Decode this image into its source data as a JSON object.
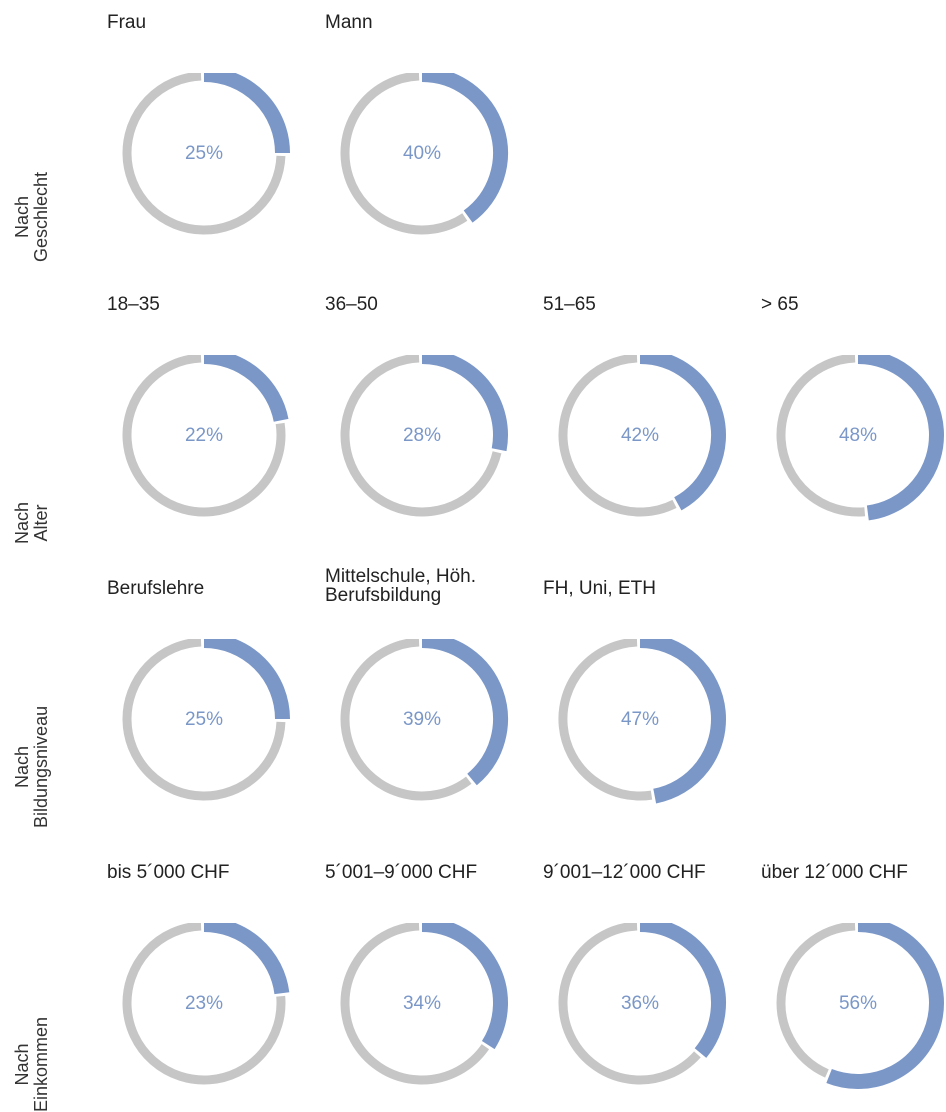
{
  "colors": {
    "accent": "#7a97c8",
    "track": "#c6c6c6"
  },
  "chart_data": {
    "type": "donut",
    "groups": [
      {
        "label": "Nach\nGeschlecht",
        "label_lines": [
          "Nach",
          "Geschlecht"
        ],
        "items": [
          {
            "name": "Frau",
            "value": 25,
            "text": "25%"
          },
          {
            "name": "Mann",
            "value": 40,
            "text": "40%"
          }
        ]
      },
      {
        "label": "Nach\nAlter",
        "label_lines": [
          "Nach",
          "Alter"
        ],
        "items": [
          {
            "name": "18–35",
            "value": 22,
            "text": "22%"
          },
          {
            "name": "36–50",
            "value": 28,
            "text": "28%"
          },
          {
            "name": "51–65",
            "value": 42,
            "text": "42%"
          },
          {
            "name": "> 65",
            "value": 48,
            "text": "48%"
          }
        ]
      },
      {
        "label": "Nach\nBildungsniveau",
        "label_lines": [
          "Nach",
          "Bildungsniveau"
        ],
        "items": [
          {
            "name": "Berufslehre",
            "value": 25,
            "text": "25%"
          },
          {
            "name": "Mittelschule, Höh.\nBerufsbildung",
            "name_lines": [
              "Mittelschule, Höh.",
              "Berufsbildung"
            ],
            "value": 39,
            "text": "39%"
          },
          {
            "name": "FH, Uni, ETH",
            "value": 47,
            "text": "47%"
          }
        ]
      },
      {
        "label": "Nach\nEinkommen",
        "label_lines": [
          "Nach",
          "Einkommen"
        ],
        "items": [
          {
            "name": "bis 5´000 CHF",
            "value": 23,
            "text": "23%"
          },
          {
            "name": "5´001–9´000 CHF",
            "value": 34,
            "text": "34%"
          },
          {
            "name": "9´001–12´000 CHF",
            "value": 36,
            "text": "36%"
          },
          {
            "name": "über 12´000 CHF",
            "value": 56,
            "text": "56%"
          }
        ]
      }
    ]
  }
}
